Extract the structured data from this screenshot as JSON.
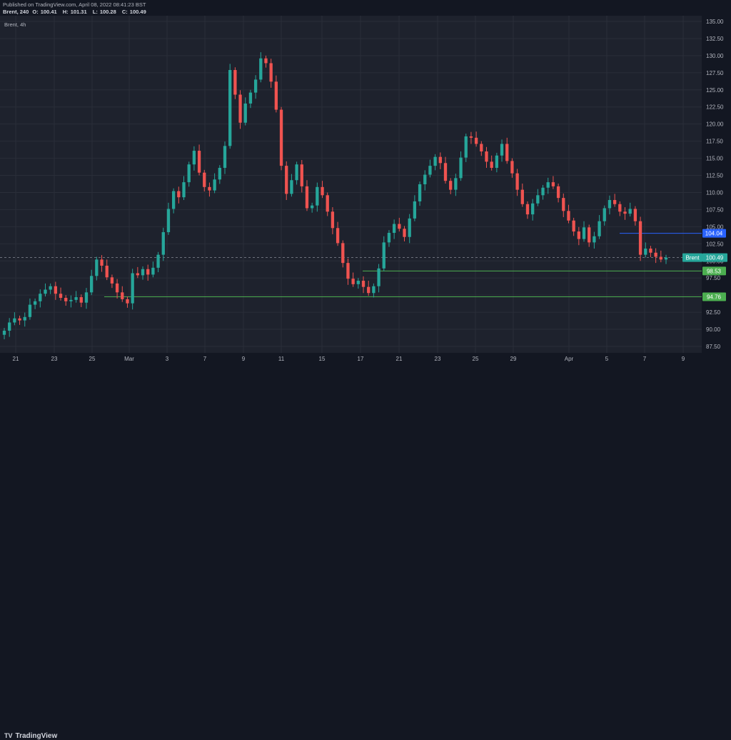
{
  "header": {
    "published": "Published on TradingView.com, April 08, 2022 08:41:23 BST",
    "symbol_interval": "Brent, 240",
    "open_label": "O:",
    "open": "100.41",
    "high_label": "H:",
    "high": "101.31",
    "low_label": "L:",
    "low": "100.28",
    "close_label": "C:",
    "close": "100.49"
  },
  "chart_label": "Brent, 4h",
  "footer": {
    "logo": "TV",
    "brand": "TradingView"
  },
  "colors": {
    "background": "#1e222d",
    "up": "#26a69a",
    "down": "#ef5350",
    "grid": "#2a2e39",
    "resistance_line": "#2962ff",
    "support_line": "#4caf50",
    "last_price": "#26a69a"
  },
  "chart_data": {
    "type": "candlestick",
    "title": "",
    "xlabel": "",
    "ylabel": "",
    "ylim": [
      87.5,
      135
    ],
    "y_ticks": [
      "87.50",
      "90.00",
      "92.50",
      "95.00",
      "97.50",
      "100.00",
      "102.50",
      "105.00",
      "107.50",
      "110.00",
      "112.50",
      "115.00",
      "117.50",
      "120.00",
      "122.50",
      "125.00",
      "127.50",
      "130.00",
      "132.50",
      "135.00"
    ],
    "x_ticks": [
      "21",
      "23",
      "25",
      "Mar",
      "3",
      "7",
      "9",
      "11",
      "15",
      "17",
      "21",
      "23",
      "25",
      "29",
      "Apr",
      "5",
      "7",
      "9"
    ],
    "grid": true,
    "candle_closes": [
      89.8,
      91.0,
      91.6,
      91.3,
      91.8,
      93.6,
      94.1,
      95.2,
      95.8,
      96.3,
      95.2,
      94.6,
      94.1,
      94.3,
      94.7,
      93.9,
      95.4,
      97.8,
      100.2,
      99.3,
      97.6,
      96.7,
      95.4,
      94.4,
      93.8,
      98.2,
      97.9,
      98.8,
      98.0,
      99.0,
      100.9,
      104.2,
      107.6,
      110.2,
      109.3,
      111.5,
      114.1,
      116.1,
      112.9,
      110.8,
      110.3,
      111.9,
      113.6,
      116.8,
      127.9,
      124.3,
      120.2,
      123.0,
      124.6,
      126.5,
      129.6,
      128.9,
      126.2,
      122.1,
      113.9,
      109.8,
      111.8,
      114.1,
      110.9,
      107.7,
      108.1,
      110.8,
      109.6,
      107.2,
      104.8,
      102.6,
      99.7,
      97.4,
      96.6,
      97.1,
      96.2,
      95.3,
      96.3,
      98.9,
      102.7,
      104.1,
      105.4,
      104.7,
      103.5,
      106.2,
      108.7,
      111.2,
      112.6,
      113.9,
      115.2,
      114.3,
      111.7,
      110.4,
      112.1,
      115.1,
      118.2,
      118.0,
      117.1,
      116.0,
      114.5,
      113.6,
      115.4,
      117.1,
      114.6,
      112.8,
      110.4,
      108.3,
      106.8,
      108.4,
      109.6,
      110.7,
      111.5,
      110.9,
      109.2,
      107.3,
      105.9,
      104.3,
      103.2,
      104.9,
      102.7,
      103.6,
      105.8,
      107.7,
      108.9,
      108.3,
      107.2,
      106.9,
      107.6,
      105.8,
      100.9,
      101.8,
      101.2,
      100.6,
      100.2,
      100.49
    ],
    "series": [
      {
        "name": "Brent",
        "last_value": 100.49
      }
    ],
    "horizontal_levels": [
      {
        "value": 104.04,
        "label": "104.04",
        "color": "#2962ff"
      },
      {
        "value": 98.53,
        "label": "98.53",
        "color": "#4caf50"
      },
      {
        "value": 94.76,
        "label": "94.76",
        "color": "#4caf50"
      }
    ],
    "last_price": {
      "value": 100.49,
      "label": "100.49",
      "name": "Brent"
    }
  }
}
